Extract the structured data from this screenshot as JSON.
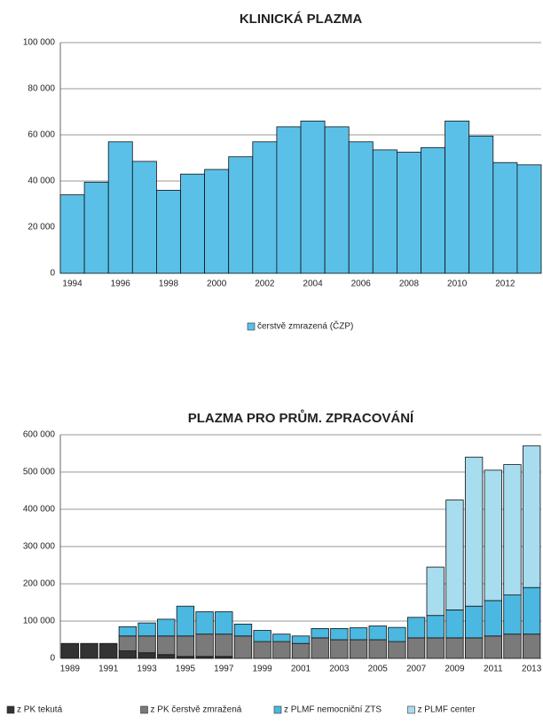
{
  "chart_data": [
    {
      "type": "bar",
      "title": "KLINICKÁ PLAZMA",
      "categories": [
        "1994",
        null,
        "1996",
        null,
        "1998",
        null,
        "2000",
        null,
        "2002",
        null,
        "2004",
        null,
        "2006",
        null,
        "2008",
        null,
        "2010",
        null,
        "2012",
        null
      ],
      "series": [
        {
          "name": "čerstvě zmrazená (ČZP)",
          "color": "#5bc0e8",
          "values": [
            34000,
            39500,
            57000,
            48500,
            36000,
            43000,
            45000,
            50500,
            57000,
            63500,
            66000,
            63500,
            57000,
            53500,
            52500,
            54500,
            66000,
            59500,
            48000,
            47000
          ]
        }
      ],
      "ylim": [
        0,
        100000
      ],
      "yticks": [
        0,
        {
          "value": 20000,
          "label": "20 000"
        },
        {
          "value": 40000,
          "label": "40 000"
        },
        {
          "value": 60000,
          "label": "60 000"
        },
        {
          "value": 80000,
          "label": "80 000"
        },
        {
          "value": 100000,
          "label": "100 000"
        }
      ],
      "grid": true,
      "legend": "bottom"
    },
    {
      "type": "stacked_bar",
      "title": "PLAZMA PRO PRŮM. ZPRACOVÁNÍ",
      "categories": [
        "1989",
        null,
        "1991",
        null,
        "1993",
        null,
        "1995",
        null,
        "1997",
        null,
        "1999",
        null,
        "2001",
        null,
        "2003",
        null,
        "2005",
        null,
        "2007",
        null,
        "2009",
        null,
        "2011",
        null,
        "2013"
      ],
      "series": [
        {
          "name": "z PK tekutá",
          "color": "#333333",
          "values": [
            40000,
            40000,
            40000,
            20000,
            15000,
            10000,
            5000,
            5000,
            5000,
            0,
            0,
            0,
            0,
            0,
            0,
            0,
            0,
            0,
            0,
            0,
            0,
            0,
            0,
            0,
            0
          ]
        },
        {
          "name": "z PK čerstvě zmražená",
          "color": "#7a7a7a",
          "values": [
            0,
            0,
            0,
            40000,
            45000,
            50000,
            55000,
            60000,
            60000,
            60000,
            45000,
            45000,
            40000,
            55000,
            50000,
            50000,
            50000,
            45000,
            55000,
            55000,
            55000,
            55000,
            60000,
            65000,
            65000
          ]
        },
        {
          "name": "z PLMF nemocniční ZTS",
          "color": "#4ab8e0",
          "values": [
            0,
            0,
            0,
            25000,
            35000,
            45000,
            80000,
            60000,
            60000,
            32000,
            30000,
            20000,
            20000,
            25000,
            30000,
            32000,
            37000,
            38000,
            55000,
            60000,
            75000,
            85000,
            95000,
            105000,
            125000
          ]
        },
        {
          "name": "z PLMF center",
          "color": "#a8dcef",
          "values": [
            0,
            0,
            0,
            0,
            0,
            0,
            0,
            0,
            0,
            0,
            0,
            0,
            0,
            0,
            0,
            0,
            0,
            0,
            0,
            130000,
            295000,
            400000,
            350000,
            350000,
            380000
          ]
        }
      ],
      "ylim": [
        0,
        600000
      ],
      "yticks": [
        0,
        {
          "value": 100000,
          "label": "100 000"
        },
        {
          "value": 200000,
          "label": "200 000"
        },
        {
          "value": 300000,
          "label": "300 000"
        },
        {
          "value": 400000,
          "label": "400 000"
        },
        {
          "value": 500000,
          "label": "500 000"
        },
        {
          "value": 600000,
          "label": "600 000"
        }
      ],
      "grid": true,
      "legend": "bottom"
    }
  ]
}
